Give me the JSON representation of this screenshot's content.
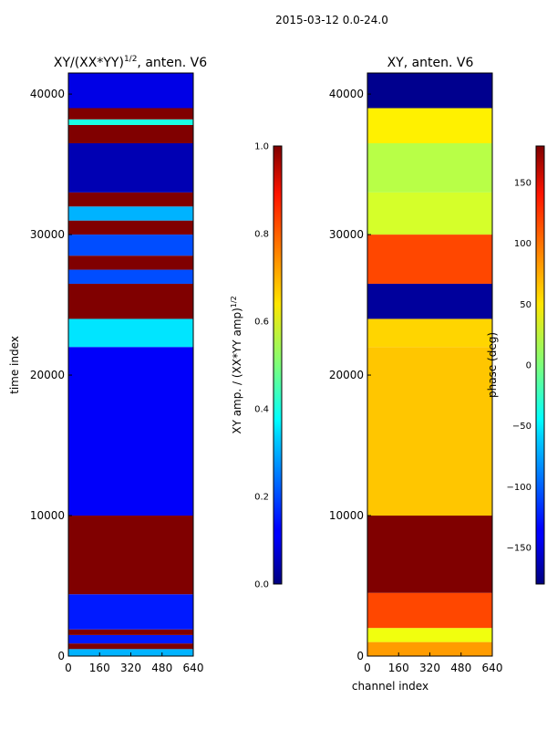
{
  "figure_title": "2015-03-12 0.0-24.0",
  "chart_data": [
    {
      "type": "heatmap",
      "title_prefix": "XY/(XX*YY)",
      "title_exp": "1/2",
      "title_suffix": ", anten. V6",
      "xlabel": "",
      "ylabel": "time index",
      "xlim": [
        0,
        640
      ],
      "ylim": [
        0,
        41500
      ],
      "xticks": [
        0,
        160,
        320,
        480,
        640
      ],
      "yticks": [
        0,
        10000,
        20000,
        30000,
        40000
      ],
      "xtick_labels": [
        "0",
        "160",
        "320",
        "480",
        "640"
      ],
      "ytick_labels": [
        "0",
        "10000",
        "20000",
        "30000",
        "40000"
      ],
      "colorbar": {
        "label_prefix": "XY amp. / (XX*YY amp)",
        "label_exp": "1/2",
        "range": [
          0.0,
          1.0
        ],
        "ticks": [
          0.0,
          0.2,
          0.4,
          0.6,
          0.8,
          1.0
        ],
        "tick_labels": [
          "0.0",
          "0.2",
          "0.4",
          "0.6",
          "0.8",
          "1.0"
        ],
        "colormap": "jet"
      },
      "bands": [
        {
          "from": 0,
          "to": 500,
          "value": 0.3
        },
        {
          "from": 500,
          "to": 900,
          "value": 1.0
        },
        {
          "from": 900,
          "to": 1500,
          "value": 0.15
        },
        {
          "from": 1500,
          "to": 1900,
          "value": 1.0
        },
        {
          "from": 1900,
          "to": 4400,
          "value": 0.15
        },
        {
          "from": 4400,
          "to": 10000,
          "value": 1.0
        },
        {
          "from": 10000,
          "to": 22000,
          "value": 0.12
        },
        {
          "from": 22000,
          "to": 24000,
          "value": 0.35
        },
        {
          "from": 24000,
          "to": 26500,
          "value": 1.0
        },
        {
          "from": 26500,
          "to": 27500,
          "value": 0.2
        },
        {
          "from": 27500,
          "to": 28500,
          "value": 1.0
        },
        {
          "from": 28500,
          "to": 30000,
          "value": 0.2
        },
        {
          "from": 30000,
          "to": 31000,
          "value": 1.0
        },
        {
          "from": 31000,
          "to": 32000,
          "value": 0.3
        },
        {
          "from": 32000,
          "to": 33000,
          "value": 1.0
        },
        {
          "from": 33000,
          "to": 36500,
          "value": 0.05
        },
        {
          "from": 36500,
          "to": 37800,
          "value": 1.0
        },
        {
          "from": 37800,
          "to": 38200,
          "value": 0.4
        },
        {
          "from": 38200,
          "to": 39000,
          "value": 1.0
        },
        {
          "from": 39000,
          "to": 41500,
          "value": 0.1
        }
      ]
    },
    {
      "type": "heatmap",
      "title": "XY, anten. V6",
      "xlabel": "channel index",
      "ylabel": "",
      "xlim": [
        0,
        640
      ],
      "ylim": [
        0,
        41500
      ],
      "xticks": [
        0,
        160,
        320,
        480,
        640
      ],
      "yticks": [
        0,
        10000,
        20000,
        30000,
        40000
      ],
      "xtick_labels": [
        "0",
        "160",
        "320",
        "480",
        "640"
      ],
      "ytick_labels": [
        "0",
        "10000",
        "20000",
        "30000",
        "40000"
      ],
      "colorbar": {
        "label": "phase (deg)",
        "range": [
          -180,
          180
        ],
        "ticks": [
          -150,
          -100,
          -50,
          0,
          50,
          100,
          150
        ],
        "tick_labels": [
          "−150",
          "−100",
          "−50",
          "0",
          "50",
          "100",
          "150"
        ],
        "colormap": "jet"
      },
      "bands": [
        {
          "from": 0,
          "to": 1000,
          "value": 80
        },
        {
          "from": 1000,
          "to": 2000,
          "value": 40
        },
        {
          "from": 2000,
          "to": 4500,
          "value": 110
        },
        {
          "from": 4500,
          "to": 10000,
          "value": 180
        },
        {
          "from": 10000,
          "to": 22000,
          "value": 65
        },
        {
          "from": 22000,
          "to": 24000,
          "value": 60
        },
        {
          "from": 24000,
          "to": 26500,
          "value": -170
        },
        {
          "from": 26500,
          "to": 30000,
          "value": 110
        },
        {
          "from": 30000,
          "to": 33000,
          "value": 30
        },
        {
          "from": 33000,
          "to": 36500,
          "value": 20
        },
        {
          "from": 36500,
          "to": 39000,
          "value": 50
        },
        {
          "from": 39000,
          "to": 41500,
          "value": -175
        }
      ]
    }
  ]
}
